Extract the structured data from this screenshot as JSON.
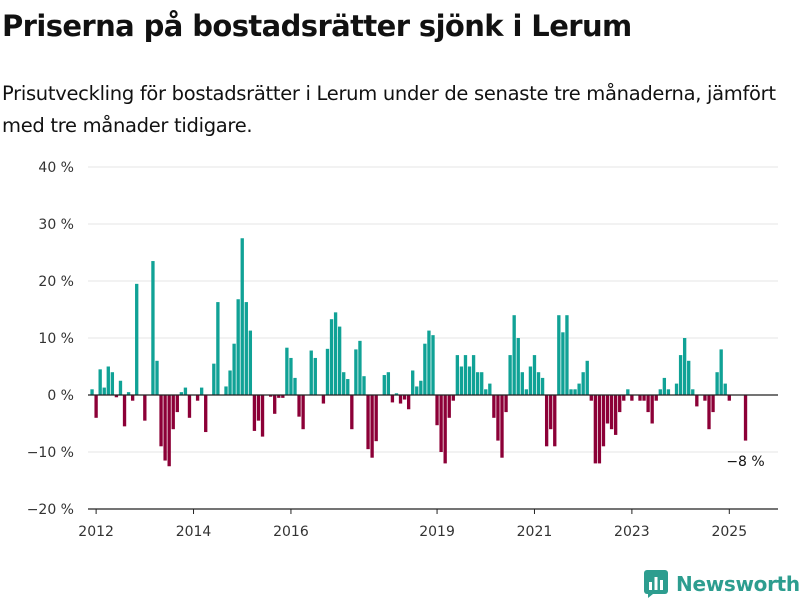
{
  "title": "Priserna på bostadsrätter sjönk i Lerum",
  "subtitle": "Prisutveckling för bostadsrätter i Lerum under de senaste tre månaderna, jämfört med tre månader tidigare.",
  "brand": {
    "name": "Newsworthy",
    "icon": "newsworthy-logo-icon"
  },
  "colors": {
    "positive": "#10a296",
    "negative": "#8c0037",
    "grid": "#e4e4e4",
    "axis": "#222222"
  },
  "chart_data": {
    "type": "bar",
    "title": "Priserna på bostadsrätter sjönk i Lerum",
    "xlabel": "",
    "ylabel": "",
    "unit": "%",
    "ylim": [
      -20,
      40
    ],
    "yticks": [
      {
        "value": 40,
        "label": "40 %"
      },
      {
        "value": 30,
        "label": "30 %"
      },
      {
        "value": 20,
        "label": "20 %"
      },
      {
        "value": 10,
        "label": "10 %"
      },
      {
        "value": 0,
        "label": "0 %"
      },
      {
        "value": -10,
        "label": "−10 %"
      },
      {
        "value": -20,
        "label": "−20 %"
      }
    ],
    "xlim": [
      "2011-11",
      "2026-01"
    ],
    "xticks": [
      {
        "value": "2012-01",
        "label": "2012"
      },
      {
        "value": "2014-01",
        "label": "2014"
      },
      {
        "value": "2016-01",
        "label": "2016"
      },
      {
        "value": "2019-01",
        "label": "2019"
      },
      {
        "value": "2021-01",
        "label": "2021"
      },
      {
        "value": "2023-01",
        "label": "2023"
      },
      {
        "value": "2025-01",
        "label": "2025"
      }
    ],
    "grid": true,
    "legend": "none",
    "annotation": {
      "x": "2025-05",
      "label": "−8 %"
    },
    "series": [
      {
        "points": [
          [
            "2011-12",
            1
          ],
          [
            "2012-01",
            -4
          ],
          [
            "2012-02",
            4.5
          ],
          [
            "2012-03",
            1.3
          ],
          [
            "2012-04",
            5
          ],
          [
            "2012-05",
            4
          ],
          [
            "2012-06",
            -0.4
          ],
          [
            "2012-07",
            2.5
          ],
          [
            "2012-08",
            -5.5
          ],
          [
            "2012-09",
            0.5
          ],
          [
            "2012-10",
            -1
          ],
          [
            "2012-11",
            19.5
          ],
          [
            "2013-01",
            -4.5
          ],
          [
            "2013-03",
            23.5
          ],
          [
            "2013-04",
            6
          ],
          [
            "2013-05",
            -9
          ],
          [
            "2013-06",
            -11.5
          ],
          [
            "2013-07",
            -12.5
          ],
          [
            "2013-08",
            -6
          ],
          [
            "2013-09",
            -3
          ],
          [
            "2013-10",
            0.5
          ],
          [
            "2013-11",
            1.3
          ],
          [
            "2013-12",
            -4
          ],
          [
            "2014-02",
            -1
          ],
          [
            "2014-03",
            1.3
          ],
          [
            "2014-04",
            -6.5
          ],
          [
            "2014-06",
            5.5
          ],
          [
            "2014-07",
            16.3
          ],
          [
            "2014-09",
            1.5
          ],
          [
            "2014-10",
            4.3
          ],
          [
            "2014-11",
            9
          ],
          [
            "2014-12",
            16.8
          ],
          [
            "2015-01",
            27.5
          ],
          [
            "2015-02",
            16.3
          ],
          [
            "2015-03",
            11.3
          ],
          [
            "2015-04",
            -6.3
          ],
          [
            "2015-05",
            -4.5
          ],
          [
            "2015-06",
            -7.3
          ],
          [
            "2015-08",
            -0.3
          ],
          [
            "2015-09",
            -3.3
          ],
          [
            "2015-10",
            -0.5
          ],
          [
            "2015-11",
            -0.5
          ],
          [
            "2015-12",
            8.3
          ],
          [
            "2016-01",
            6.5
          ],
          [
            "2016-02",
            3
          ],
          [
            "2016-03",
            -3.8
          ],
          [
            "2016-04",
            -6
          ],
          [
            "2016-06",
            7.8
          ],
          [
            "2016-07",
            6.5
          ],
          [
            "2016-09",
            -1.5
          ],
          [
            "2016-10",
            8.1
          ],
          [
            "2016-11",
            13.3
          ],
          [
            "2016-12",
            14.5
          ],
          [
            "2017-01",
            12
          ],
          [
            "2017-02",
            4
          ],
          [
            "2017-03",
            2.8
          ],
          [
            "2017-04",
            -6
          ],
          [
            "2017-05",
            8
          ],
          [
            "2017-06",
            9.5
          ],
          [
            "2017-07",
            3.3
          ],
          [
            "2017-08",
            -9.5
          ],
          [
            "2017-09",
            -11
          ],
          [
            "2017-10",
            -8.1
          ],
          [
            "2017-12",
            3.5
          ],
          [
            "2018-01",
            4
          ],
          [
            "2018-02",
            -1.3
          ],
          [
            "2018-03",
            0.3
          ],
          [
            "2018-04",
            -1.5
          ],
          [
            "2018-05",
            -0.8
          ],
          [
            "2018-06",
            -2.5
          ],
          [
            "2018-07",
            4.3
          ],
          [
            "2018-08",
            1.5
          ],
          [
            "2018-09",
            2.5
          ],
          [
            "2018-10",
            9
          ],
          [
            "2018-11",
            11.3
          ],
          [
            "2018-12",
            10.5
          ],
          [
            "2019-01",
            -5.3
          ],
          [
            "2019-02",
            -10
          ],
          [
            "2019-03",
            -12
          ],
          [
            "2019-04",
            -4
          ],
          [
            "2019-05",
            -1
          ],
          [
            "2019-06",
            7
          ],
          [
            "2019-07",
            5
          ],
          [
            "2019-08",
            7
          ],
          [
            "2019-09",
            5
          ],
          [
            "2019-10",
            7
          ],
          [
            "2019-11",
            4
          ],
          [
            "2019-12",
            4
          ],
          [
            "2020-01",
            1
          ],
          [
            "2020-02",
            2
          ],
          [
            "2020-03",
            -4
          ],
          [
            "2020-04",
            -8
          ],
          [
            "2020-05",
            -11
          ],
          [
            "2020-06",
            -3
          ],
          [
            "2020-07",
            7
          ],
          [
            "2020-08",
            14
          ],
          [
            "2020-09",
            10
          ],
          [
            "2020-10",
            4
          ],
          [
            "2020-11",
            1
          ],
          [
            "2020-12",
            5
          ],
          [
            "2021-01",
            7
          ],
          [
            "2021-02",
            4
          ],
          [
            "2021-03",
            3
          ],
          [
            "2021-04",
            -9
          ],
          [
            "2021-05",
            -6
          ],
          [
            "2021-06",
            -9
          ],
          [
            "2021-07",
            14
          ],
          [
            "2021-08",
            11
          ],
          [
            "2021-09",
            14
          ],
          [
            "2021-10",
            1
          ],
          [
            "2021-11",
            1
          ],
          [
            "2021-12",
            2
          ],
          [
            "2022-01",
            4
          ],
          [
            "2022-02",
            6
          ],
          [
            "2022-03",
            -1
          ],
          [
            "2022-04",
            -12
          ],
          [
            "2022-05",
            -12
          ],
          [
            "2022-06",
            -9
          ],
          [
            "2022-07",
            -5
          ],
          [
            "2022-08",
            -6
          ],
          [
            "2022-09",
            -7
          ],
          [
            "2022-10",
            -3
          ],
          [
            "2022-11",
            -1
          ],
          [
            "2022-12",
            1
          ],
          [
            "2023-01",
            -1
          ],
          [
            "2023-03",
            -1
          ],
          [
            "2023-04",
            -1
          ],
          [
            "2023-05",
            -3
          ],
          [
            "2023-06",
            -5
          ],
          [
            "2023-07",
            -1
          ],
          [
            "2023-08",
            1
          ],
          [
            "2023-09",
            3
          ],
          [
            "2023-10",
            1
          ],
          [
            "2023-12",
            2
          ],
          [
            "2024-01",
            7
          ],
          [
            "2024-02",
            10
          ],
          [
            "2024-03",
            6
          ],
          [
            "2024-04",
            1
          ],
          [
            "2024-05",
            -2
          ],
          [
            "2024-07",
            -1
          ],
          [
            "2024-08",
            -6
          ],
          [
            "2024-09",
            -3
          ],
          [
            "2024-10",
            4
          ],
          [
            "2024-11",
            8
          ],
          [
            "2024-12",
            2
          ],
          [
            "2025-01",
            -1
          ],
          [
            "2025-05",
            -8
          ]
        ]
      }
    ]
  }
}
